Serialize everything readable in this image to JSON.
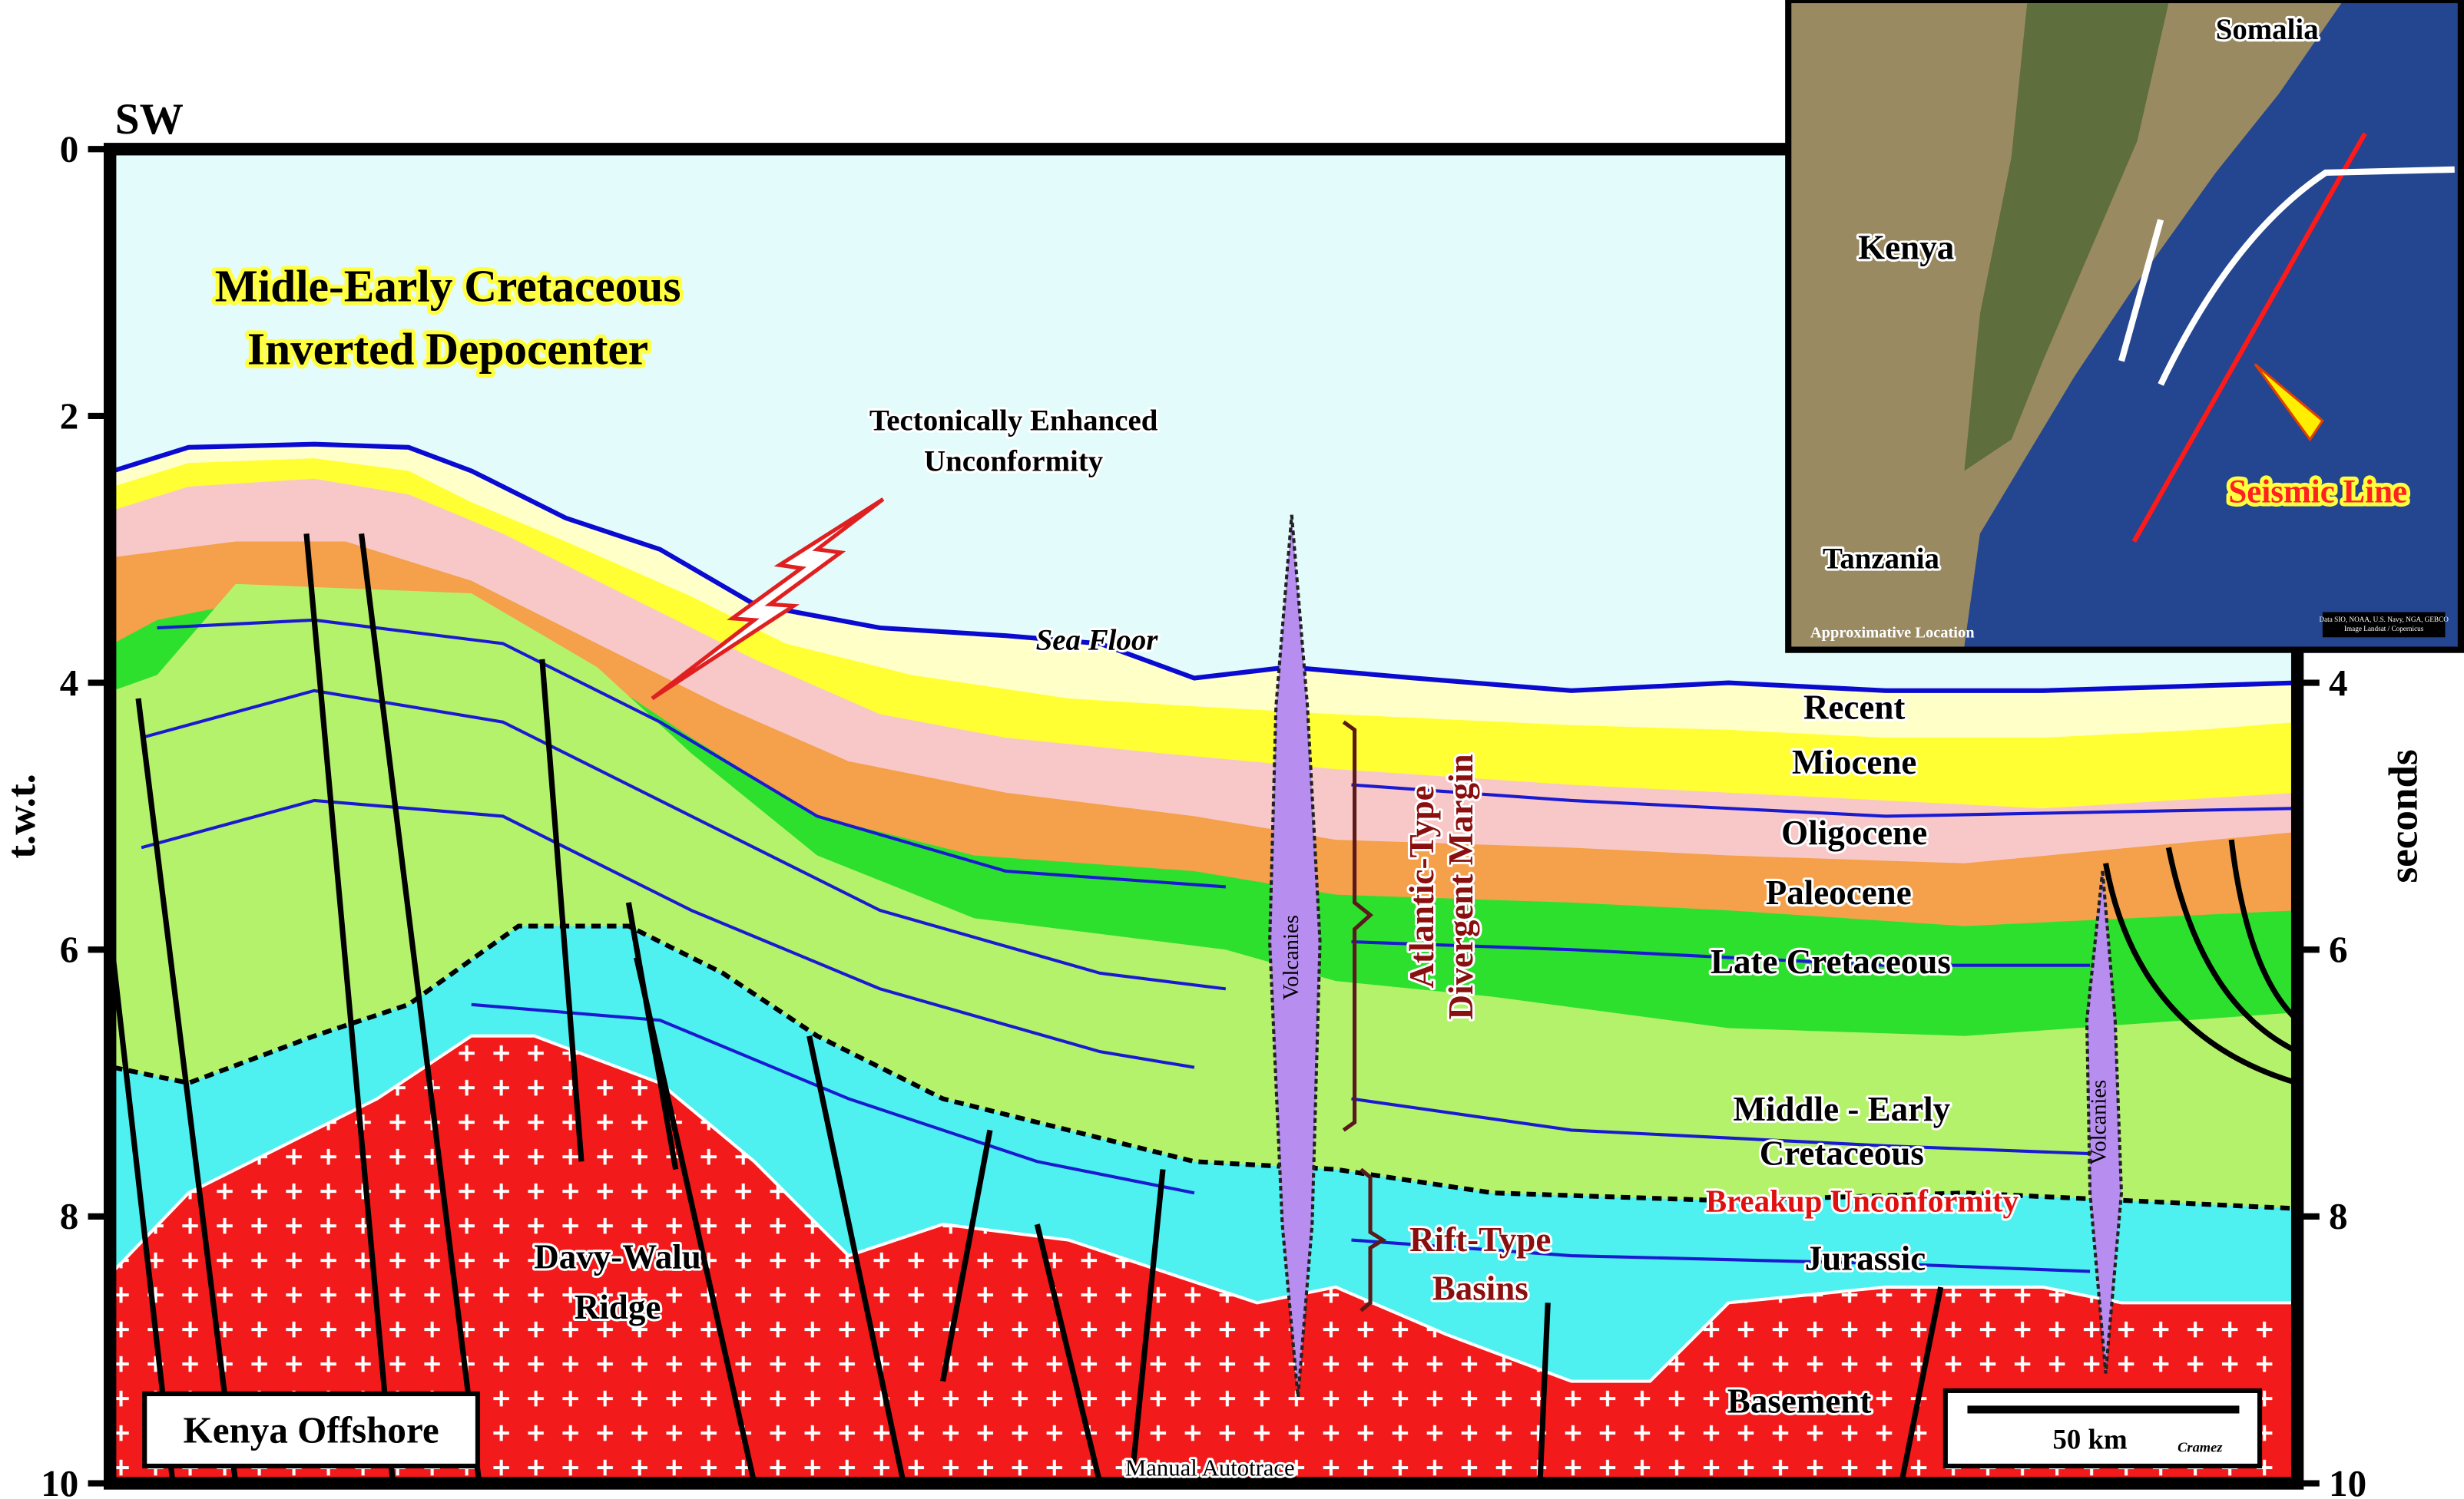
{
  "orientation": "SW",
  "depth_axis": {
    "left_title": "t.w.t.",
    "right_title": "seconds",
    "left_ticks": [
      0,
      2,
      4,
      6,
      8,
      10
    ],
    "right_ticks": [
      4,
      6,
      8,
      10
    ]
  },
  "title": [
    "Midle-Early Cretaceous",
    "Inverted Depocenter"
  ],
  "annotations": {
    "unconformity": [
      "Tectonically Enhanced",
      "Unconformity"
    ],
    "sea_floor": "Sea Floor",
    "volcanics": [
      "Volcanies",
      "Volcanies"
    ],
    "margin": [
      "Atlantic-Type",
      "Divergent Margin"
    ],
    "rift": [
      "Rift-Type",
      "Basins"
    ],
    "ridge": [
      "Davy-Walu",
      "Ridge"
    ],
    "breakup": "Breakup Unconformity",
    "autotrace": "Manual Autotrace"
  },
  "layers": {
    "recent": "Recent",
    "miocene": "Miocene",
    "oligocene": "Oligocene",
    "paleocene": "Paleocene",
    "late_cretaceous": "Late Cretaceous",
    "middle_early_cretaceous": [
      "Middle - Early",
      "Cretaceous"
    ],
    "jurassic": "Jurassic",
    "basement": "Basement"
  },
  "location_box": "Kenya Offshore",
  "scale_bar": {
    "label": "50 km",
    "author": "Cramez"
  },
  "map": {
    "somalia": "Somalia",
    "kenya": "Kenya",
    "tanzania": "Tanzania",
    "seismic_line": "Seismic Line",
    "note": "Approximative Location",
    "credits": [
      "Data SIO, NOAA, U.S. Navy, NGA, GEBCO",
      "Image Landsat / Copernicus"
    ]
  }
}
